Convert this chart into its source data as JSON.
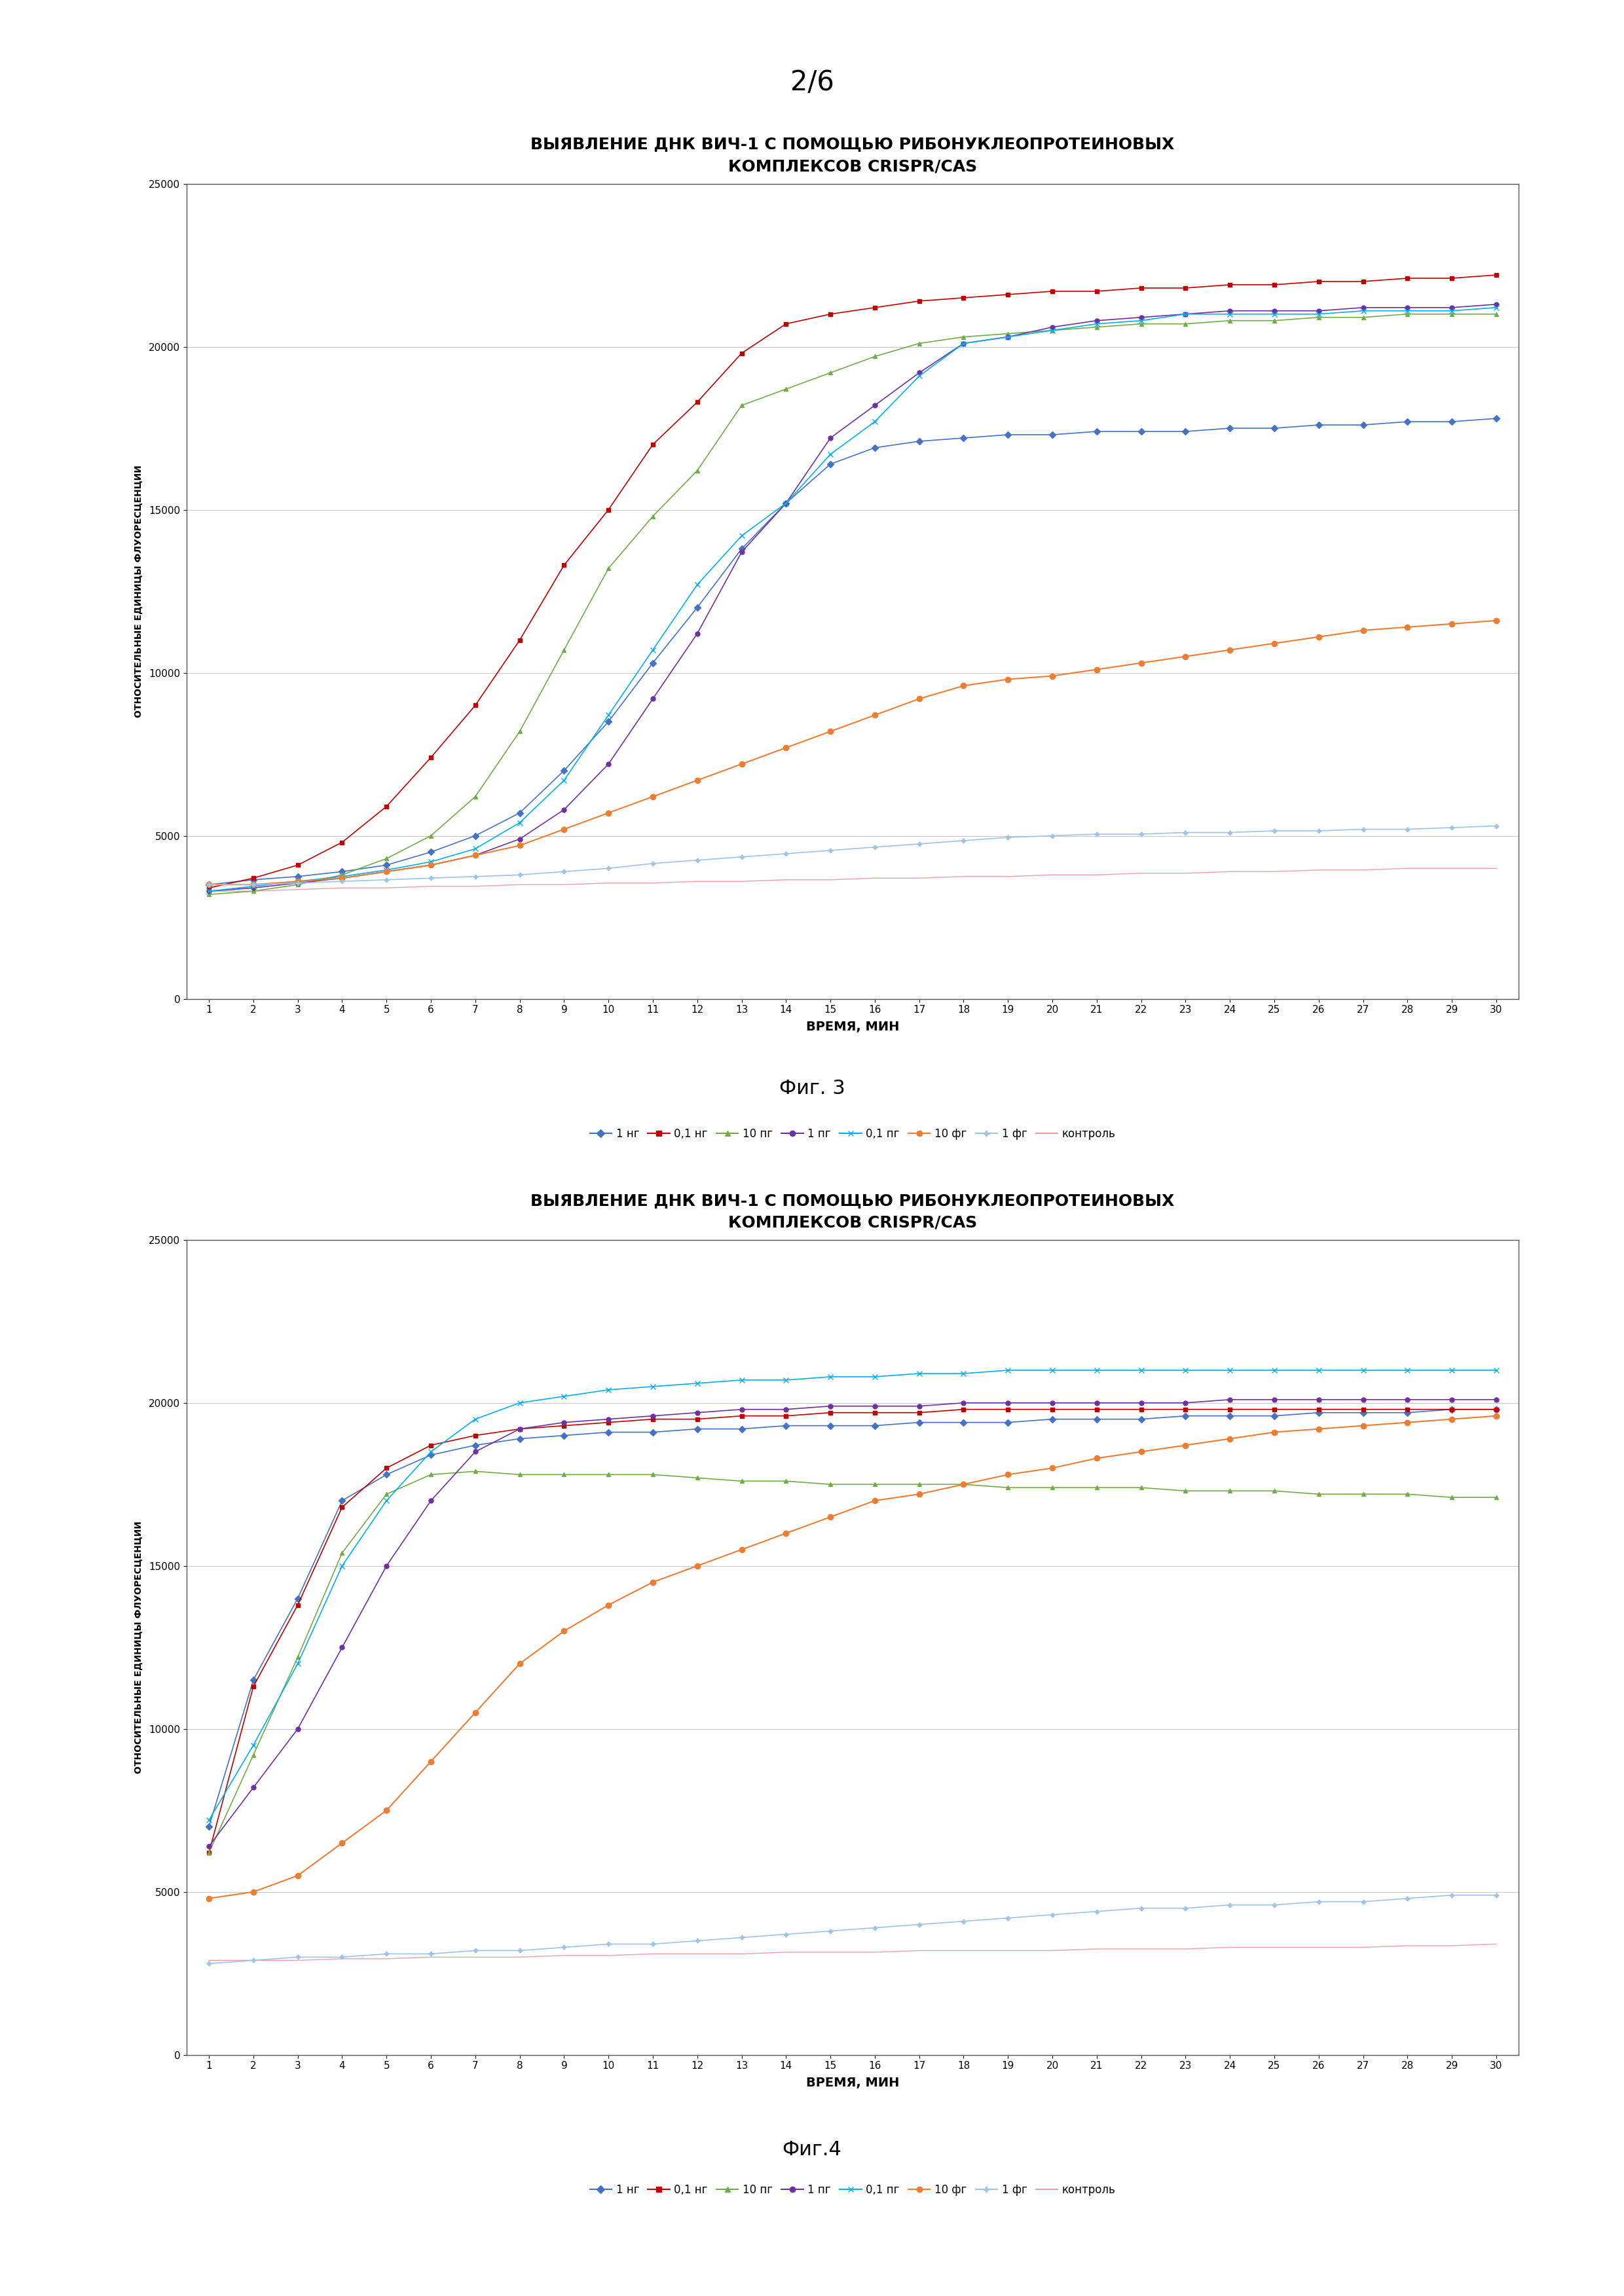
{
  "page_label": "2/6",
  "title": "ВЫЯВЛЕНИЕ ДНК ВИЧ-1 С ПОМОЩЬЮ РИБОНУКЛЕОПРОТЕИНОВЫХ\nКОМПЛЕКСОВ CRISPR/CAS",
  "ylabel": "ОТНОСИТЕЛЬНЫЕ ЕДИНИЦЫ ФЛУОРЕСЦЕНЦИИ",
  "xlabel": "ВРЕМЯ, МИН",
  "fig1_label": "Фиг. 3",
  "fig2_label": "Фиг.4",
  "legend_labels": [
    "1 нг",
    "0,1 нг",
    "10 пг",
    "1 пг",
    "0,1 пг",
    "10 фг",
    "1 фг",
    "контроль"
  ],
  "series_colors": [
    "#4472C4",
    "#C00000",
    "#70AD47",
    "#7030A0",
    "#00B0F0",
    "#ED7D31",
    "#9DC3E6",
    "#E8A0A8"
  ],
  "ylim": [
    0,
    25000
  ],
  "yticks": [
    0,
    5000,
    10000,
    15000,
    20000,
    25000
  ],
  "xticks": [
    1,
    2,
    3,
    4,
    5,
    6,
    7,
    8,
    9,
    10,
    11,
    12,
    13,
    14,
    15,
    16,
    17,
    18,
    19,
    20,
    21,
    22,
    23,
    24,
    25,
    26,
    27,
    28,
    29,
    30
  ],
  "fig1_data": {
    "1нг": [
      3500,
      3650,
      3750,
      3900,
      4100,
      4500,
      5000,
      5700,
      7000,
      8500,
      10300,
      12000,
      13800,
      15200,
      16400,
      16900,
      17100,
      17200,
      17300,
      17300,
      17400,
      17400,
      17400,
      17500,
      17500,
      17600,
      17600,
      17700,
      17700,
      17800
    ],
    "0.1нг": [
      3400,
      3700,
      4100,
      4800,
      5900,
      7400,
      9000,
      11000,
      13300,
      15000,
      17000,
      18300,
      19800,
      20700,
      21000,
      21200,
      21400,
      21500,
      21600,
      21700,
      21700,
      21800,
      21800,
      21900,
      21900,
      22000,
      22000,
      22100,
      22100,
      22200
    ],
    "10пг": [
      3200,
      3300,
      3500,
      3800,
      4300,
      5000,
      6200,
      8200,
      10700,
      13200,
      14800,
      16200,
      18200,
      18700,
      19200,
      19700,
      20100,
      20300,
      20400,
      20500,
      20600,
      20700,
      20700,
      20800,
      20800,
      20900,
      20900,
      21000,
      21000,
      21000
    ],
    "1пг": [
      3300,
      3400,
      3550,
      3700,
      3900,
      4100,
      4400,
      4900,
      5800,
      7200,
      9200,
      11200,
      13700,
      15200,
      17200,
      18200,
      19200,
      20100,
      20300,
      20600,
      20800,
      20900,
      21000,
      21100,
      21100,
      21100,
      21200,
      21200,
      21200,
      21300
    ],
    "0.1пг": [
      3300,
      3450,
      3600,
      3750,
      3950,
      4200,
      4600,
      5400,
      6700,
      8700,
      10700,
      12700,
      14200,
      15200,
      16700,
      17700,
      19100,
      20100,
      20300,
      20500,
      20700,
      20800,
      21000,
      21000,
      21000,
      21000,
      21100,
      21100,
      21100,
      21200
    ],
    "10фг": [
      3500,
      3500,
      3600,
      3700,
      3900,
      4100,
      4400,
      4700,
      5200,
      5700,
      6200,
      6700,
      7200,
      7700,
      8200,
      8700,
      9200,
      9600,
      9800,
      9900,
      10100,
      10300,
      10500,
      10700,
      10900,
      11100,
      11300,
      11400,
      11500,
      11600
    ],
    "1фг": [
      3500,
      3500,
      3550,
      3600,
      3650,
      3700,
      3750,
      3800,
      3900,
      4000,
      4150,
      4250,
      4350,
      4450,
      4550,
      4650,
      4750,
      4850,
      4950,
      5000,
      5050,
      5050,
      5100,
      5100,
      5150,
      5150,
      5200,
      5200,
      5250,
      5300
    ],
    "контроль": [
      3300,
      3300,
      3350,
      3400,
      3400,
      3450,
      3450,
      3500,
      3500,
      3550,
      3550,
      3600,
      3600,
      3650,
      3650,
      3700,
      3700,
      3750,
      3750,
      3800,
      3800,
      3850,
      3850,
      3900,
      3900,
      3950,
      3950,
      4000,
      4000,
      4000
    ]
  },
  "fig2_data": {
    "1нг": [
      7000,
      11500,
      14000,
      17000,
      17800,
      18400,
      18700,
      18900,
      19000,
      19100,
      19100,
      19200,
      19200,
      19300,
      19300,
      19300,
      19400,
      19400,
      19400,
      19500,
      19500,
      19500,
      19600,
      19600,
      19600,
      19700,
      19700,
      19700,
      19800,
      19800
    ],
    "0.1нг": [
      6200,
      11300,
      13800,
      16800,
      18000,
      18700,
      19000,
      19200,
      19300,
      19400,
      19500,
      19500,
      19600,
      19600,
      19700,
      19700,
      19700,
      19800,
      19800,
      19800,
      19800,
      19800,
      19800,
      19800,
      19800,
      19800,
      19800,
      19800,
      19800,
      19800
    ],
    "10пг": [
      6200,
      9200,
      12200,
      15400,
      17200,
      17800,
      17900,
      17800,
      17800,
      17800,
      17800,
      17700,
      17600,
      17600,
      17500,
      17500,
      17500,
      17500,
      17400,
      17400,
      17400,
      17400,
      17300,
      17300,
      17300,
      17200,
      17200,
      17200,
      17100,
      17100
    ],
    "1пг": [
      6400,
      8200,
      10000,
      12500,
      15000,
      17000,
      18500,
      19200,
      19400,
      19500,
      19600,
      19700,
      19800,
      19800,
      19900,
      19900,
      19900,
      20000,
      20000,
      20000,
      20000,
      20000,
      20000,
      20100,
      20100,
      20100,
      20100,
      20100,
      20100,
      20100
    ],
    "0.1пг": [
      7200,
      9500,
      12000,
      15000,
      17000,
      18500,
      19500,
      20000,
      20200,
      20400,
      20500,
      20600,
      20700,
      20700,
      20800,
      20800,
      20900,
      20900,
      21000,
      21000,
      21000,
      21000,
      21000,
      21000,
      21000,
      21000,
      21000,
      21000,
      21000,
      21000
    ],
    "10фг": [
      4800,
      5000,
      5500,
      6500,
      7500,
      9000,
      10500,
      12000,
      13000,
      13800,
      14500,
      15000,
      15500,
      16000,
      16500,
      17000,
      17200,
      17500,
      17800,
      18000,
      18300,
      18500,
      18700,
      18900,
      19100,
      19200,
      19300,
      19400,
      19500,
      19600
    ],
    "1фг": [
      2800,
      2900,
      3000,
      3000,
      3100,
      3100,
      3200,
      3200,
      3300,
      3400,
      3400,
      3500,
      3600,
      3700,
      3800,
      3900,
      4000,
      4100,
      4200,
      4300,
      4400,
      4500,
      4500,
      4600,
      4600,
      4700,
      4700,
      4800,
      4900,
      4900
    ],
    "контроль": [
      2900,
      2900,
      2900,
      2950,
      2950,
      3000,
      3000,
      3000,
      3050,
      3050,
      3100,
      3100,
      3100,
      3150,
      3150,
      3150,
      3200,
      3200,
      3200,
      3200,
      3250,
      3250,
      3250,
      3300,
      3300,
      3300,
      3300,
      3350,
      3350,
      3400
    ]
  }
}
